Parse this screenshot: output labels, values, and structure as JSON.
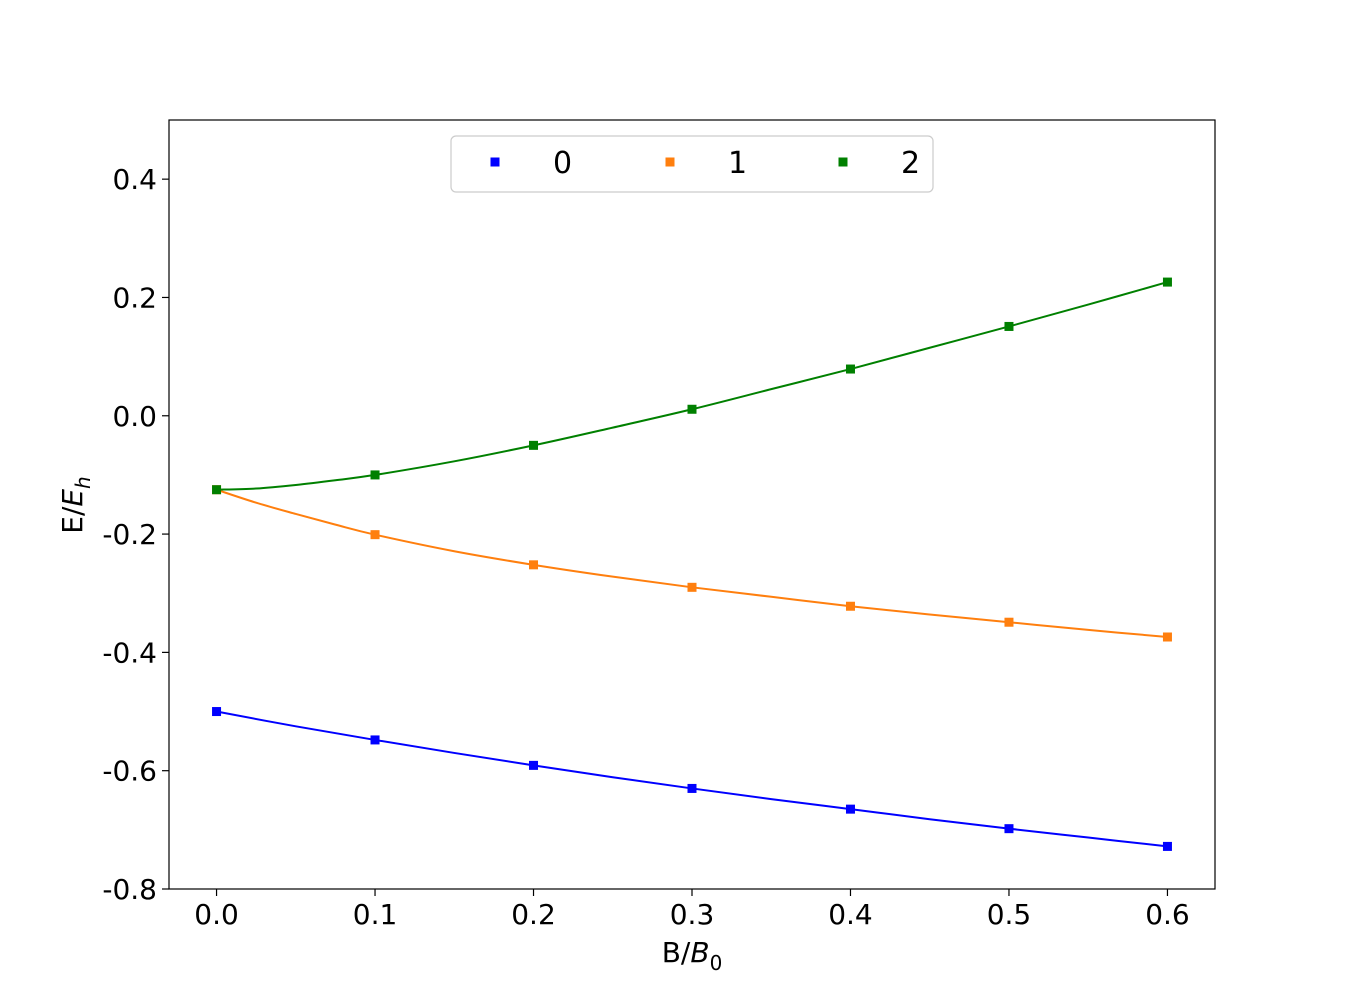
{
  "chart_data": {
    "type": "line",
    "title": "",
    "xlabel": "B/B_0",
    "ylabel": "E/E_h",
    "xlim": [
      -0.03,
      0.63
    ],
    "ylim": [
      -0.8,
      0.5
    ],
    "xticks": [
      0.0,
      0.1,
      0.2,
      0.3,
      0.4,
      0.5,
      0.6
    ],
    "xtick_labels": [
      "0.0",
      "0.1",
      "0.2",
      "0.3",
      "0.4",
      "0.5",
      "0.6"
    ],
    "yticks": [
      -0.8,
      -0.6,
      -0.4,
      -0.2,
      0.0,
      0.2,
      0.4
    ],
    "ytick_labels": [
      "-0.8",
      "-0.6",
      "-0.4",
      "-0.2",
      "0.0",
      "0.2",
      "0.4"
    ],
    "grid": false,
    "legend_position": "top-center",
    "marker": "square",
    "x": [
      0.0,
      0.1,
      0.2,
      0.3,
      0.4,
      0.5,
      0.6
    ],
    "series": [
      {
        "name": "0",
        "color": "#0000ff",
        "values": [
          -0.5,
          -0.548,
          -0.591,
          -0.63,
          -0.665,
          -0.698,
          -0.728
        ],
        "curve_x": [
          0.0,
          0.05,
          0.1,
          0.15,
          0.2,
          0.25,
          0.3,
          0.35,
          0.4,
          0.45,
          0.5,
          0.55,
          0.6
        ],
        "curve_y": [
          -0.5,
          -0.525,
          -0.548,
          -0.57,
          -0.591,
          -0.611,
          -0.63,
          -0.648,
          -0.665,
          -0.682,
          -0.698,
          -0.713,
          -0.728
        ]
      },
      {
        "name": "1",
        "color": "#ff7f0e",
        "values": [
          -0.125,
          -0.201,
          -0.252,
          -0.29,
          -0.322,
          -0.349,
          -0.374
        ],
        "curve_x": [
          0.0,
          0.025,
          0.05,
          0.075,
          0.1,
          0.15,
          0.2,
          0.25,
          0.3,
          0.35,
          0.4,
          0.45,
          0.5,
          0.55,
          0.6
        ],
        "curve_y": [
          -0.125,
          -0.147,
          -0.166,
          -0.184,
          -0.201,
          -0.229,
          -0.252,
          -0.272,
          -0.29,
          -0.306,
          -0.322,
          -0.336,
          -0.349,
          -0.362,
          -0.374
        ]
      },
      {
        "name": "2",
        "color": "#008000",
        "values": [
          -0.125,
          -0.1,
          -0.05,
          0.011,
          0.079,
          0.151,
          0.226
        ],
        "curve_x": [
          0.0,
          0.025,
          0.05,
          0.075,
          0.1,
          0.15,
          0.2,
          0.25,
          0.3,
          0.35,
          0.4,
          0.45,
          0.5,
          0.55,
          0.6
        ],
        "curve_y": [
          -0.125,
          -0.123,
          -0.117,
          -0.109,
          -0.1,
          -0.077,
          -0.05,
          -0.02,
          0.011,
          0.045,
          0.079,
          0.115,
          0.151,
          0.188,
          0.226
        ]
      }
    ]
  }
}
